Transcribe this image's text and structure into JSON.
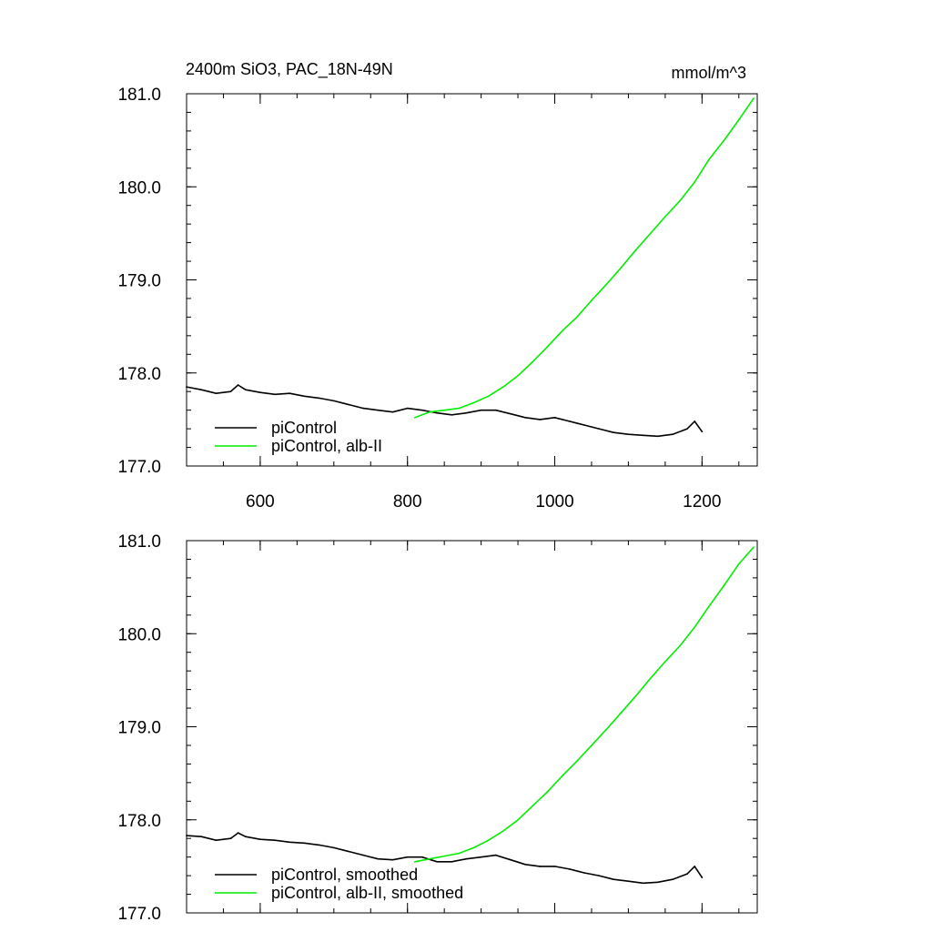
{
  "chart_data": [
    {
      "type": "line",
      "title": "2400m SiO3, PAC_18N-49N",
      "units": "mmol/m^3",
      "xlim": [
        500,
        1275
      ],
      "ylim": [
        177.0,
        181.0
      ],
      "x_ticks": [
        600,
        800,
        1000,
        1200
      ],
      "x_tick_labels": [
        "600",
        "800",
        "1000",
        "1200"
      ],
      "y_ticks": [
        177,
        178,
        179,
        180,
        181
      ],
      "y_tick_labels": [
        "177.0",
        "178.0",
        "179.0",
        "180.0",
        "181.0"
      ],
      "grid": false,
      "legend": "bottom-left",
      "series": [
        {
          "name": "piControl",
          "color": "#000000",
          "x": [
            500,
            520,
            540,
            560,
            570,
            580,
            600,
            620,
            640,
            660,
            680,
            700,
            720,
            740,
            760,
            780,
            800,
            820,
            840,
            860,
            880,
            900,
            920,
            940,
            960,
            980,
            1000,
            1020,
            1040,
            1060,
            1080,
            1100,
            1120,
            1140,
            1160,
            1180,
            1190,
            1200
          ],
          "y": [
            177.85,
            177.82,
            177.78,
            177.8,
            177.87,
            177.82,
            177.79,
            177.77,
            177.78,
            177.75,
            177.73,
            177.7,
            177.66,
            177.62,
            177.6,
            177.58,
            177.62,
            177.6,
            177.57,
            177.55,
            177.57,
            177.6,
            177.6,
            177.56,
            177.52,
            177.5,
            177.52,
            177.48,
            177.44,
            177.4,
            177.36,
            177.34,
            177.33,
            177.32,
            177.34,
            177.4,
            177.48,
            177.37
          ]
        },
        {
          "name": "piControl, alb-II",
          "color": "#00ee00",
          "x": [
            810,
            830,
            850,
            870,
            890,
            910,
            930,
            950,
            970,
            990,
            1010,
            1030,
            1050,
            1070,
            1090,
            1110,
            1130,
            1150,
            1170,
            1190,
            1210,
            1230,
            1250,
            1270
          ],
          "y": [
            177.52,
            177.58,
            177.6,
            177.62,
            177.68,
            177.75,
            177.85,
            177.97,
            178.12,
            178.28,
            178.45,
            178.6,
            178.78,
            178.95,
            179.13,
            179.32,
            179.5,
            179.68,
            179.85,
            180.05,
            180.3,
            180.5,
            180.72,
            180.95
          ]
        }
      ]
    },
    {
      "type": "line",
      "title": "",
      "xlim": [
        500,
        1275
      ],
      "ylim": [
        177.0,
        181.0
      ],
      "x_ticks": [
        600,
        800,
        1000,
        1200
      ],
      "y_ticks": [
        177,
        178,
        179,
        180,
        181
      ],
      "y_tick_labels": [
        "177.0",
        "178.0",
        "179.0",
        "180.0",
        "181.0"
      ],
      "grid": false,
      "legend": "bottom-left",
      "series": [
        {
          "name": "piControl, smoothed",
          "color": "#000000",
          "x": [
            500,
            520,
            540,
            560,
            570,
            580,
            600,
            620,
            640,
            660,
            680,
            700,
            720,
            740,
            760,
            780,
            800,
            820,
            840,
            860,
            880,
            900,
            920,
            940,
            960,
            980,
            1000,
            1020,
            1040,
            1060,
            1080,
            1100,
            1120,
            1140,
            1160,
            1180,
            1190,
            1200
          ],
          "y": [
            177.83,
            177.82,
            177.78,
            177.8,
            177.86,
            177.82,
            177.79,
            177.78,
            177.76,
            177.75,
            177.73,
            177.7,
            177.66,
            177.62,
            177.58,
            177.57,
            177.6,
            177.6,
            177.55,
            177.55,
            177.58,
            177.6,
            177.62,
            177.57,
            177.52,
            177.5,
            177.5,
            177.47,
            177.43,
            177.4,
            177.36,
            177.34,
            177.32,
            177.33,
            177.36,
            177.42,
            177.5,
            177.38
          ]
        },
        {
          "name": "piControl, alb-II, smoothed",
          "color": "#00ee00",
          "x": [
            810,
            830,
            850,
            870,
            890,
            910,
            930,
            950,
            970,
            990,
            1010,
            1030,
            1050,
            1070,
            1090,
            1110,
            1130,
            1150,
            1170,
            1190,
            1210,
            1230,
            1250,
            1270
          ],
          "y": [
            177.55,
            177.58,
            177.61,
            177.64,
            177.7,
            177.78,
            177.88,
            178.0,
            178.15,
            178.3,
            178.47,
            178.63,
            178.8,
            178.97,
            179.15,
            179.33,
            179.52,
            179.7,
            179.87,
            180.07,
            180.3,
            180.52,
            180.75,
            180.93
          ]
        }
      ]
    }
  ]
}
